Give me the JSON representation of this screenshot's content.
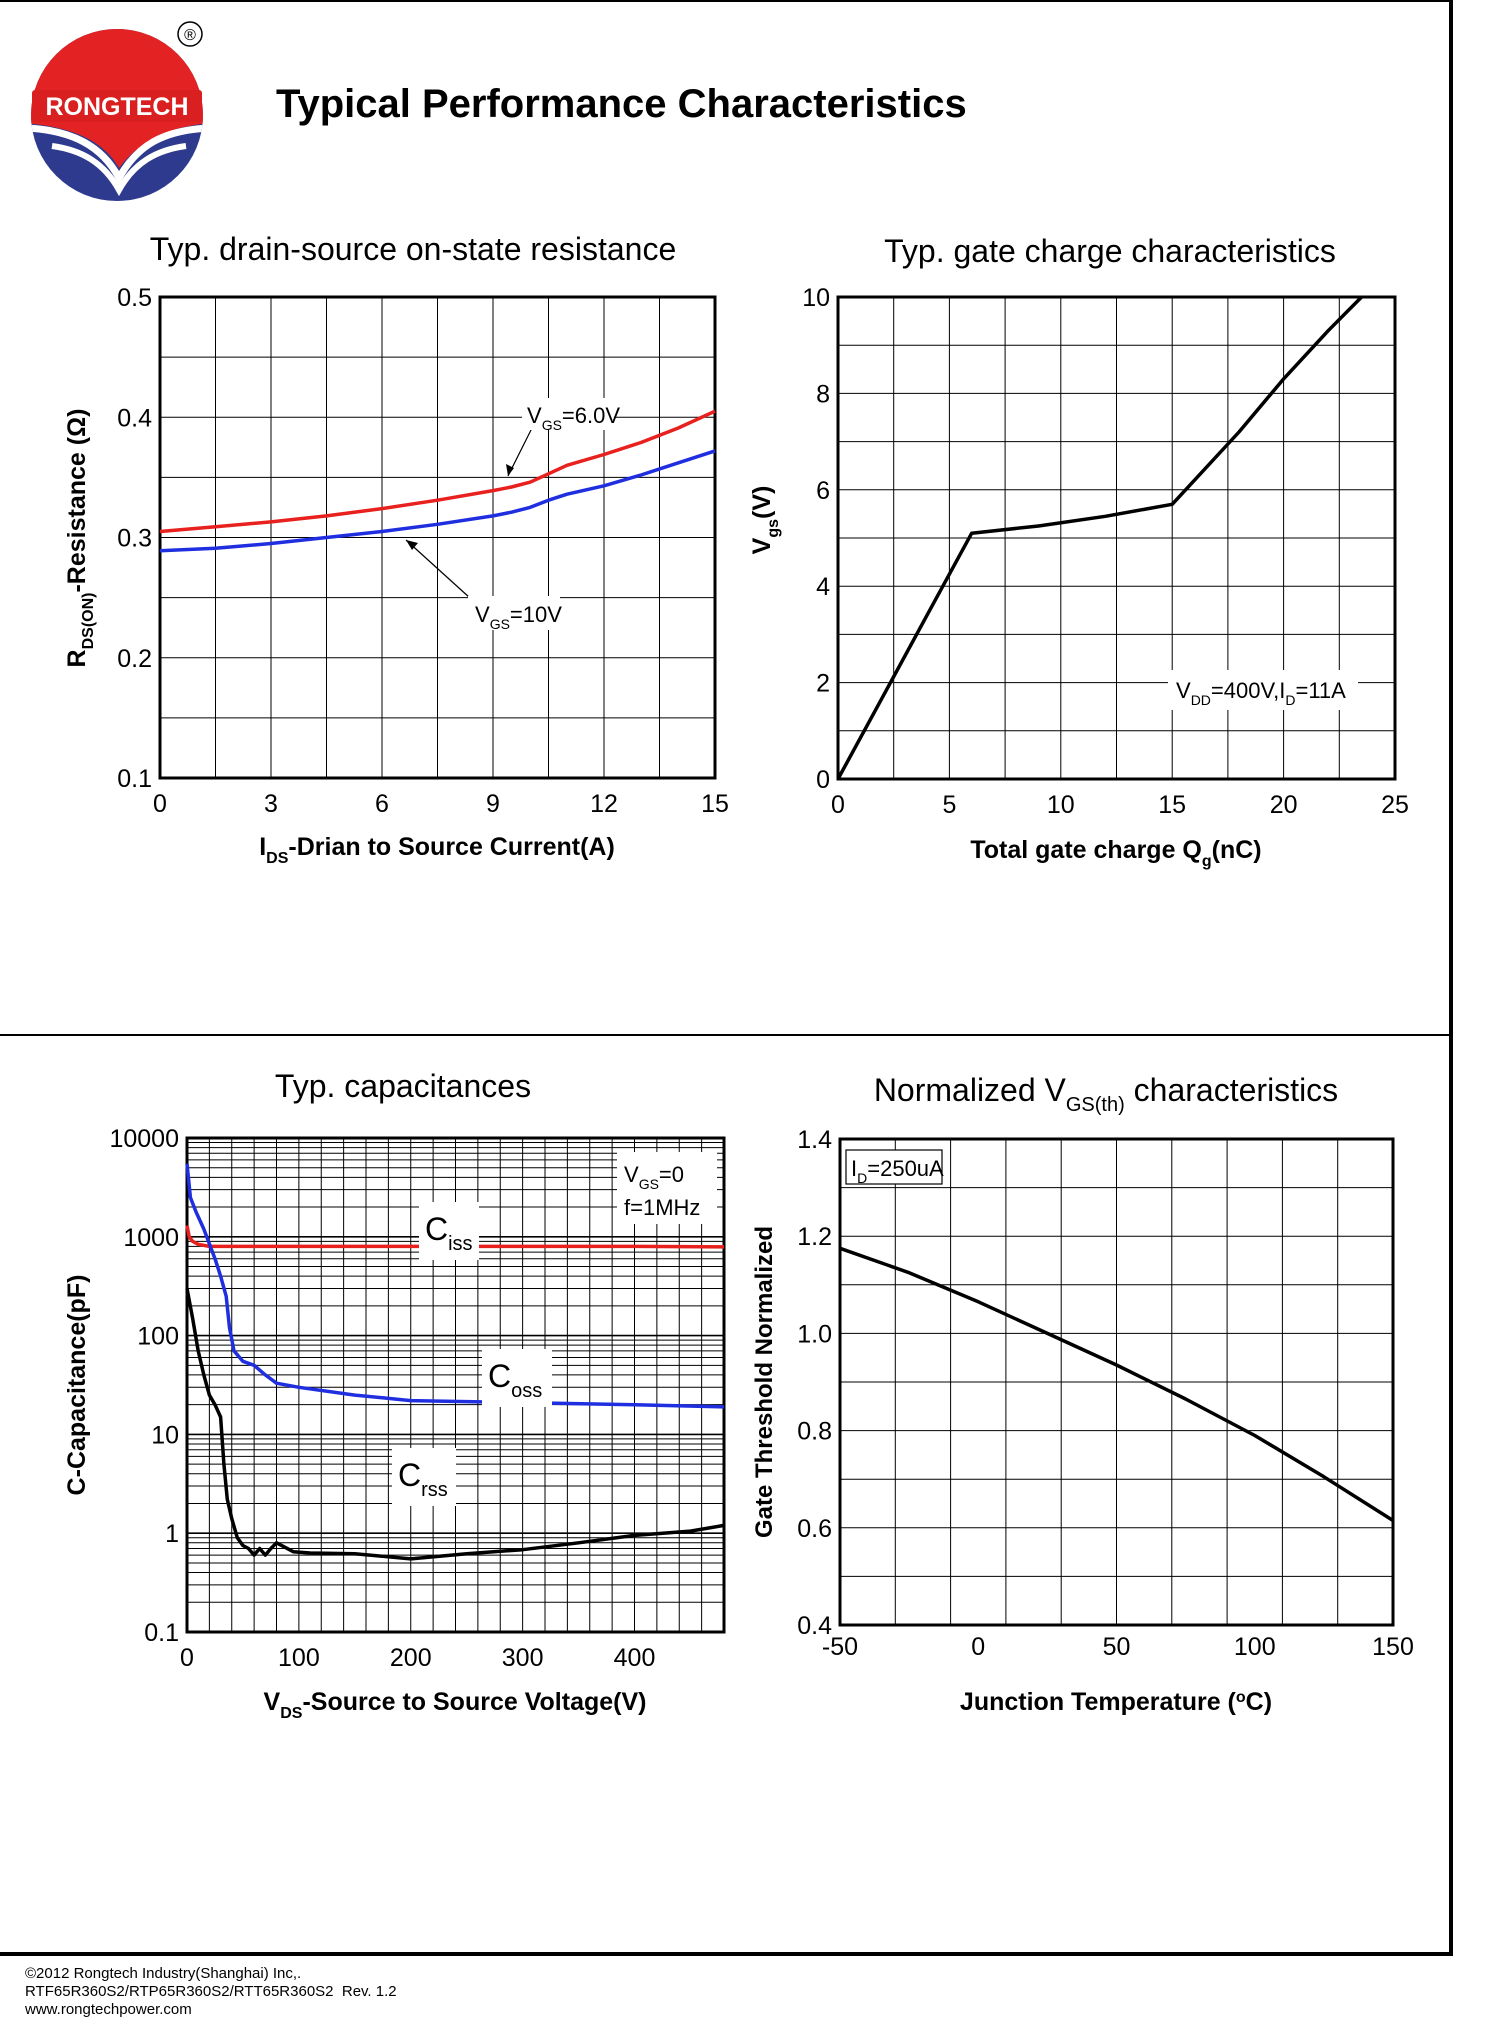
{
  "brand": {
    "logo_text": "RONGTECH",
    "registered_mark": "®"
  },
  "page_title": "Typical Performance Characteristics",
  "footer": {
    "copyright": "©2012 Rongtech Industry(Shanghai) Inc,.",
    "part_numbers": "RTF65R360S2/RTP65R360S2/RTT65R360S2",
    "revision": "Rev. 1.2",
    "website": "www.rongtechpower.com"
  },
  "colors": {
    "red": "#e8201e",
    "blue": "#1f2fe0",
    "black": "#000000"
  },
  "chart_data": [
    {
      "type": "line",
      "title": "Typ. drain-source on-state resistance",
      "ylabel": {
        "main": "R",
        "sub": "DS(ON)",
        "rest": "-Resistance (Ω)"
      },
      "xlabel": {
        "main": "I",
        "sub": "DS",
        "rest": "-Drian to Source Current(A)"
      },
      "xlim": [
        0,
        15
      ],
      "ylim": [
        0.1,
        0.5
      ],
      "xticks": [
        "0",
        "3",
        "6",
        "9",
        "12",
        "15"
      ],
      "yticks": [
        "0.1",
        "0.2",
        "0.3",
        "0.4",
        "0.5"
      ],
      "grid": true,
      "series": [
        {
          "name": "VGS=6.0V",
          "color": "#e8201e",
          "x": [
            0,
            1.5,
            3,
            4.5,
            6,
            7.5,
            9,
            9.5,
            10,
            10.5,
            11,
            12,
            13,
            14,
            15
          ],
          "y": [
            0.305,
            0.309,
            0.313,
            0.318,
            0.324,
            0.331,
            0.339,
            0.342,
            0.346,
            0.353,
            0.36,
            0.369,
            0.379,
            0.391,
            0.405
          ]
        },
        {
          "name": "VGS=10V",
          "color": "#1f2fe0",
          "x": [
            0,
            1.5,
            3,
            4.5,
            6,
            7.5,
            9,
            9.5,
            10,
            10.5,
            11,
            12,
            13,
            14,
            15
          ],
          "y": [
            0.289,
            0.291,
            0.295,
            0.3,
            0.305,
            0.311,
            0.318,
            0.321,
            0.325,
            0.331,
            0.336,
            0.343,
            0.352,
            0.362,
            0.372
          ]
        }
      ],
      "annotations": [
        {
          "main": "V",
          "sub": "GS",
          "rest": "=6.0V"
        },
        {
          "main": "V",
          "sub": "GS",
          "rest": "=10V"
        }
      ]
    },
    {
      "type": "line",
      "title": "Typ. gate charge characteristics",
      "ylabel": {
        "main": "V",
        "sub": "gs",
        "rest": "(V)"
      },
      "xlabel": {
        "main": "Total gate charge Q",
        "sub": "g",
        "rest": "(nC)"
      },
      "xlim": [
        0,
        25
      ],
      "ylim": [
        0,
        10
      ],
      "xticks": [
        "0",
        "5",
        "10",
        "15",
        "20",
        "25"
      ],
      "yticks": [
        "0",
        "2",
        "4",
        "6",
        "8",
        "10"
      ],
      "grid": true,
      "series": [
        {
          "name": "Vgs",
          "color": "#000000",
          "x": [
            0,
            2,
            4,
            6,
            9,
            12,
            15,
            16,
            18,
            20,
            22,
            23.5
          ],
          "y": [
            0,
            1.7,
            3.4,
            5.1,
            5.25,
            5.45,
            5.7,
            6.2,
            7.2,
            8.3,
            9.3,
            10.0
          ]
        }
      ],
      "annotations": [
        {
          "main": "V",
          "sub": "DD",
          "rest": "=400V,I",
          "sub2": "D",
          "rest2": "=11A"
        }
      ]
    },
    {
      "type": "line",
      "title": "Typ. capacitances",
      "yscale": "log",
      "ylabel": {
        "main": "C-Capacitance(pF)",
        "sub": "",
        "rest": ""
      },
      "xlabel": {
        "main": "V",
        "sub": "DS",
        "rest": "-Source to Source Voltage(V)"
      },
      "xlim": [
        0,
        480
      ],
      "ylim": [
        0.1,
        10000
      ],
      "xticks": [
        "0",
        "100",
        "200",
        "300",
        "400"
      ],
      "yticks": [
        "0.1",
        "1",
        "10",
        "100",
        "1000",
        "10000"
      ],
      "grid": true,
      "series": [
        {
          "name": "Ciss",
          "color": "#e8201e",
          "x": [
            0,
            2,
            5,
            10,
            20,
            40,
            100,
            200,
            300,
            400,
            480
          ],
          "y": [
            1300,
            1000,
            900,
            840,
            800,
            800,
            800,
            800,
            800,
            800,
            790
          ]
        },
        {
          "name": "Coss",
          "color": "#1f2fe0",
          "x": [
            0,
            3,
            8,
            15,
            25,
            30,
            35,
            38,
            42,
            50,
            60,
            70,
            80,
            100,
            150,
            200,
            300,
            400,
            480
          ],
          "y": [
            5500,
            2500,
            1800,
            1200,
            600,
            400,
            250,
            120,
            70,
            55,
            50,
            40,
            33,
            30,
            25,
            22,
            21,
            20,
            19
          ]
        },
        {
          "name": "Crss",
          "color": "#000000",
          "x": [
            0,
            5,
            10,
            15,
            20,
            25,
            30,
            33,
            36,
            40,
            45,
            50,
            55,
            60,
            65,
            70,
            75,
            80,
            95,
            110,
            150,
            200,
            250,
            300,
            350,
            400,
            450,
            480
          ],
          "y": [
            300,
            150,
            70,
            40,
            25,
            20,
            15,
            5,
            2.2,
            1.4,
            0.9,
            0.75,
            0.7,
            0.6,
            0.7,
            0.6,
            0.7,
            0.8,
            0.65,
            0.63,
            0.62,
            0.55,
            0.62,
            0.68,
            0.8,
            0.95,
            1.05,
            1.2
          ]
        }
      ],
      "legend": [
        {
          "main": "V",
          "sub": "GS",
          "rest": "=0"
        },
        {
          "main": "f=1MHz"
        }
      ],
      "labels": [
        {
          "main": "C",
          "sub": "iss"
        },
        {
          "main": "C",
          "sub": "oss"
        },
        {
          "main": "C",
          "sub": "rss"
        }
      ]
    },
    {
      "type": "line",
      "title": {
        "main": "Normalized V",
        "sub": "GS(th)",
        "rest": " characteristics"
      },
      "ylabel": {
        "main": "Gate Threshold Normalized",
        "sub": "",
        "rest": ""
      },
      "xlabel": {
        "main": "Junction Temperature (",
        "sup": "o",
        "rest": "C)"
      },
      "xlim": [
        -50,
        150
      ],
      "ylim": [
        0.4,
        1.4
      ],
      "xticks": [
        "-50",
        "0",
        "50",
        "100",
        "150"
      ],
      "yticks": [
        "0.4",
        "0.6",
        "0.8",
        "1.0",
        "1.2",
        "1.4"
      ],
      "grid": true,
      "series": [
        {
          "name": "VGS(th)",
          "color": "#000000",
          "x": [
            -50,
            -25,
            0,
            25,
            50,
            75,
            100,
            125,
            150
          ],
          "y": [
            1.175,
            1.125,
            1.065,
            1.0,
            0.935,
            0.865,
            0.79,
            0.705,
            0.615
          ]
        }
      ],
      "annotations": [
        {
          "main": "I",
          "sub": "D",
          "rest": "=250uA"
        }
      ]
    }
  ]
}
